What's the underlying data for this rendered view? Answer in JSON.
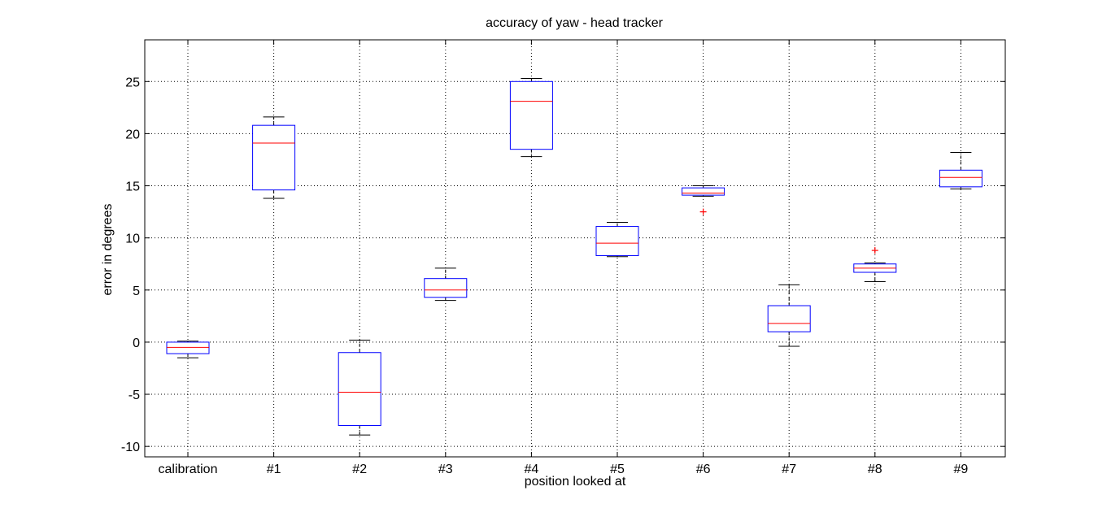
{
  "chart_data": {
    "type": "box",
    "title": "accuracy of yaw - head tracker",
    "xlabel": "position looked at",
    "ylabel": "error in degrees",
    "categories": [
      "calibration",
      "#1",
      "#2",
      "#3",
      "#4",
      "#5",
      "#6",
      "#7",
      "#8",
      "#9"
    ],
    "ylim": [
      -11,
      29
    ],
    "yticks": [
      -10,
      -5,
      0,
      5,
      10,
      15,
      20,
      25
    ],
    "grid": true,
    "colors": {
      "box": "#0000ff",
      "median": "#ff0000",
      "whisker": "#000000",
      "outlier": "#ff0000",
      "grid": "#000000"
    },
    "boxes": [
      {
        "category": "calibration",
        "min": -1.5,
        "q1": -1.1,
        "median": -0.5,
        "q3": 0.0,
        "max": 0.1,
        "outliers": []
      },
      {
        "category": "#1",
        "min": 13.8,
        "q1": 14.6,
        "median": 19.1,
        "q3": 20.8,
        "max": 21.6,
        "outliers": []
      },
      {
        "category": "#2",
        "min": -8.9,
        "q1": -8.0,
        "median": -4.8,
        "q3": -1.0,
        "max": 0.2,
        "outliers": []
      },
      {
        "category": "#3",
        "min": 4.0,
        "q1": 4.3,
        "median": 5.0,
        "q3": 6.1,
        "max": 7.1,
        "outliers": []
      },
      {
        "category": "#4",
        "min": 17.8,
        "q1": 18.5,
        "median": 23.1,
        "q3": 25.0,
        "max": 25.3,
        "outliers": []
      },
      {
        "category": "#5",
        "min": 8.2,
        "q1": 8.3,
        "median": 9.5,
        "q3": 11.1,
        "max": 11.5,
        "outliers": []
      },
      {
        "category": "#6",
        "min": 14.0,
        "q1": 14.1,
        "median": 14.3,
        "q3": 14.8,
        "max": 15.0,
        "outliers": [
          12.5
        ]
      },
      {
        "category": "#7",
        "min": -0.4,
        "q1": 1.0,
        "median": 1.8,
        "q3": 3.5,
        "max": 5.5,
        "outliers": []
      },
      {
        "category": "#8",
        "min": 5.8,
        "q1": 6.7,
        "median": 7.1,
        "q3": 7.5,
        "max": 7.6,
        "outliers": [
          8.8
        ]
      },
      {
        "category": "#9",
        "min": 14.7,
        "q1": 14.9,
        "median": 15.8,
        "q3": 16.5,
        "max": 18.2,
        "outliers": []
      }
    ]
  }
}
